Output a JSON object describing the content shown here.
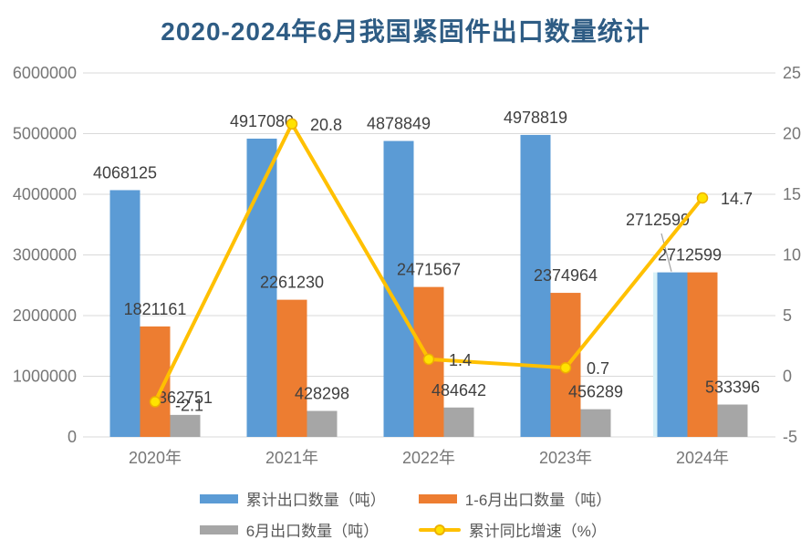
{
  "chart_data": {
    "type": "combo-bar-line",
    "title": "2020-2024年6月我国紧固件出口数量统计",
    "categories": [
      "2020年",
      "2021年",
      "2022年",
      "2023年",
      "2024年"
    ],
    "bar_series": [
      {
        "key": "cumulative-export",
        "name": "累计出口数量（吨）",
        "color": "#5B9BD5",
        "values": [
          4068125,
          4917080,
          4878849,
          4978819,
          2712599
        ]
      },
      {
        "key": "h1-export",
        "name": "1-6月出口数量（吨）",
        "color": "#ED7D31",
        "values": [
          1821161,
          2261230,
          2471567,
          2374964,
          2712599
        ]
      },
      {
        "key": "june-export",
        "name": "6月出口数量（吨）",
        "color": "#A6A6A6",
        "values": [
          362751,
          428298,
          484642,
          456289,
          533396
        ]
      }
    ],
    "line_series": {
      "key": "yoy-growth",
      "name": "累计同比增速（%）",
      "color": "#FFC000",
      "marker_fill": "#FFE300",
      "marker_ring": "#EDB000",
      "values": [
        -2.1,
        20.8,
        1.4,
        0.7,
        14.7
      ]
    },
    "left_axis": {
      "min": 0,
      "max": 6000000,
      "ticks": [
        "6000000",
        "5000000",
        "4000000",
        "3000000",
        "2000000",
        "1000000",
        "0"
      ]
    },
    "right_axis": {
      "min": -5,
      "max": 25,
      "ticks": [
        "25",
        "20",
        "15",
        "10",
        "5",
        "0",
        "-5"
      ]
    },
    "grid": "horizontal",
    "legend_position": "bottom",
    "title_color": "#2E5C84",
    "gridline_color": "#D9D9D9",
    "axis_label_color": "#767676",
    "data_label_color": "#3F3F3F"
  }
}
